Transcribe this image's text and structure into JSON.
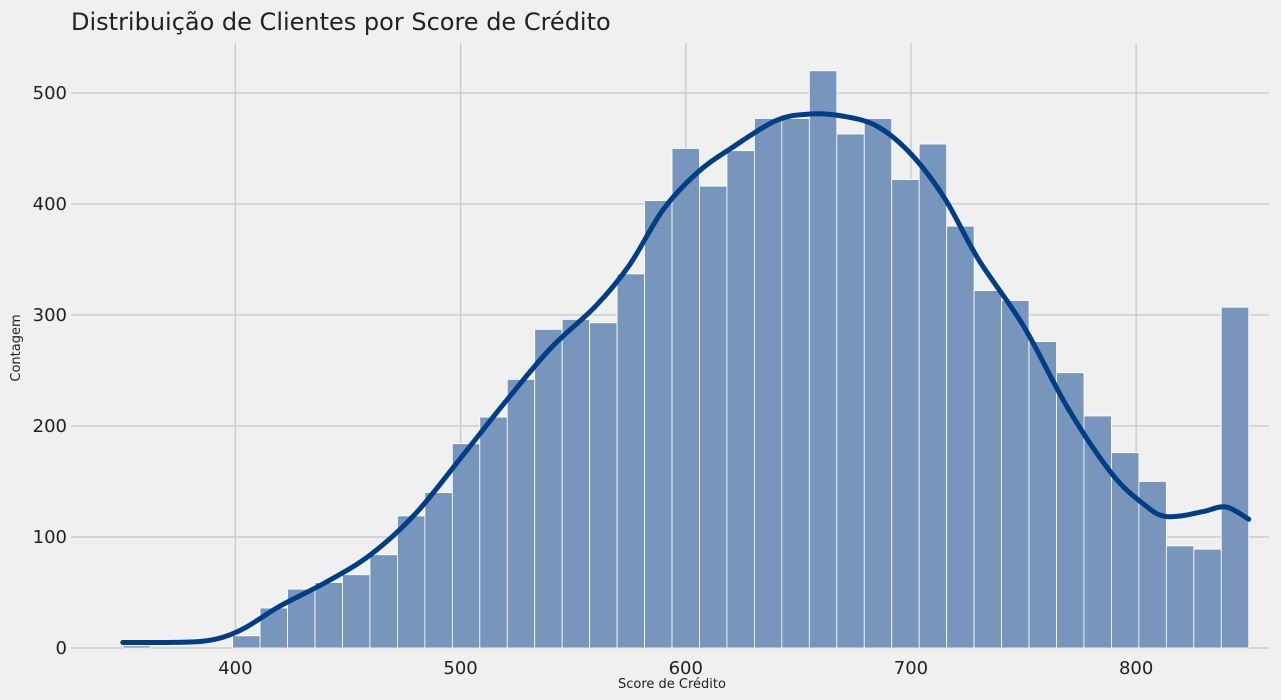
{
  "chart_data": {
    "type": "histogram",
    "title": "Distribuição de Clientes por Score de Crédito",
    "xlabel": "Score de Crédito",
    "ylabel": "Contagem",
    "xlim": [
      327,
      859
    ],
    "ylim": [
      0,
      545
    ],
    "x_ticks": [
      400,
      500,
      600,
      700,
      800
    ],
    "y_ticks": [
      0,
      100,
      200,
      300,
      400,
      500
    ],
    "grid": true,
    "colors": {
      "background": "#f0f0f0",
      "bar_fill": "#7896bc",
      "bar_edge": "#ffffff",
      "kde_line": "#003f87",
      "grid": "#cbcbcb"
    },
    "bins": {
      "start": 350,
      "width": 12.195,
      "counts": [
        2,
        0,
        0,
        0,
        11,
        36,
        53,
        59,
        66,
        84,
        119,
        140,
        184,
        208,
        242,
        287,
        296,
        293,
        337,
        403,
        450,
        416,
        448,
        477,
        477,
        520,
        463,
        477,
        422,
        454,
        380,
        322,
        313,
        276,
        248,
        209,
        176,
        150,
        92,
        89,
        307
      ]
    },
    "kde": {
      "x": [
        350,
        370,
        385,
        395,
        405,
        420,
        440,
        460,
        480,
        500,
        520,
        540,
        560,
        575,
        590,
        605,
        620,
        640,
        655,
        670,
        685,
        700,
        715,
        730,
        750,
        770,
        790,
        805,
        812,
        820,
        830,
        840,
        850
      ],
      "y": [
        5,
        5,
        6,
        10,
        19,
        38,
        59,
        84,
        121,
        171,
        222,
        270,
        308,
        345,
        395,
        428,
        450,
        475,
        481,
        479,
        470,
        445,
        405,
        350,
        290,
        215,
        155,
        127,
        119,
        119,
        123,
        127,
        116
      ]
    }
  }
}
